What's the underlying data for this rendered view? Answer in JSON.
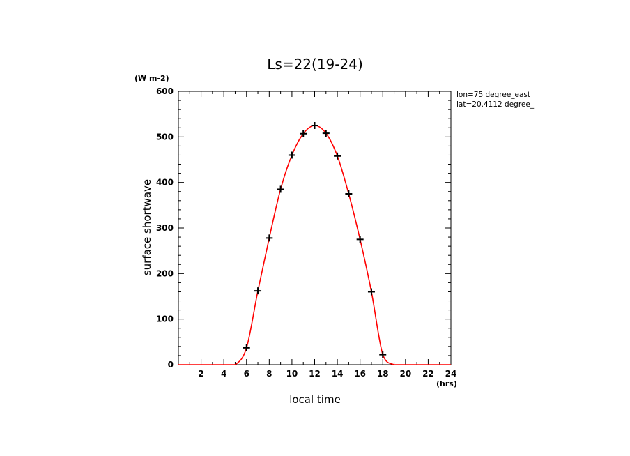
{
  "chart_data": {
    "type": "line",
    "title": "Ls=22(19-24)",
    "xlabel": "local time",
    "ylabel": "surface shortwave",
    "x_unit": "(hrs)",
    "y_unit": "(W m-2)",
    "annotations": [
      "lon=75 degree_east",
      "lat=20.4112 degree_"
    ],
    "xlim": [
      0,
      24
    ],
    "ylim": [
      0,
      600
    ],
    "x_tick_labels": [
      "2",
      "4",
      "6",
      "8",
      "10",
      "12",
      "14",
      "16",
      "18",
      "20",
      "22",
      "24"
    ],
    "y_tick_labels": [
      "0",
      "100",
      "200",
      "300",
      "400",
      "500",
      "600"
    ],
    "grid": false,
    "colors": {
      "line": "#ff0000",
      "markers": "#000000"
    },
    "series": [
      {
        "marker": "plus",
        "x": [
          0,
          1,
          2,
          3,
          4,
          5,
          6,
          7,
          8,
          9,
          10,
          11,
          12,
          13,
          14,
          15,
          16,
          17,
          18,
          19,
          20,
          21,
          22,
          23,
          24
        ],
        "values": [
          0,
          0,
          0,
          0,
          0,
          0,
          37,
          162,
          278,
          385,
          460,
          507,
          525,
          508,
          458,
          375,
          275,
          160,
          22,
          0,
          0,
          0,
          0,
          0,
          0
        ]
      }
    ]
  }
}
